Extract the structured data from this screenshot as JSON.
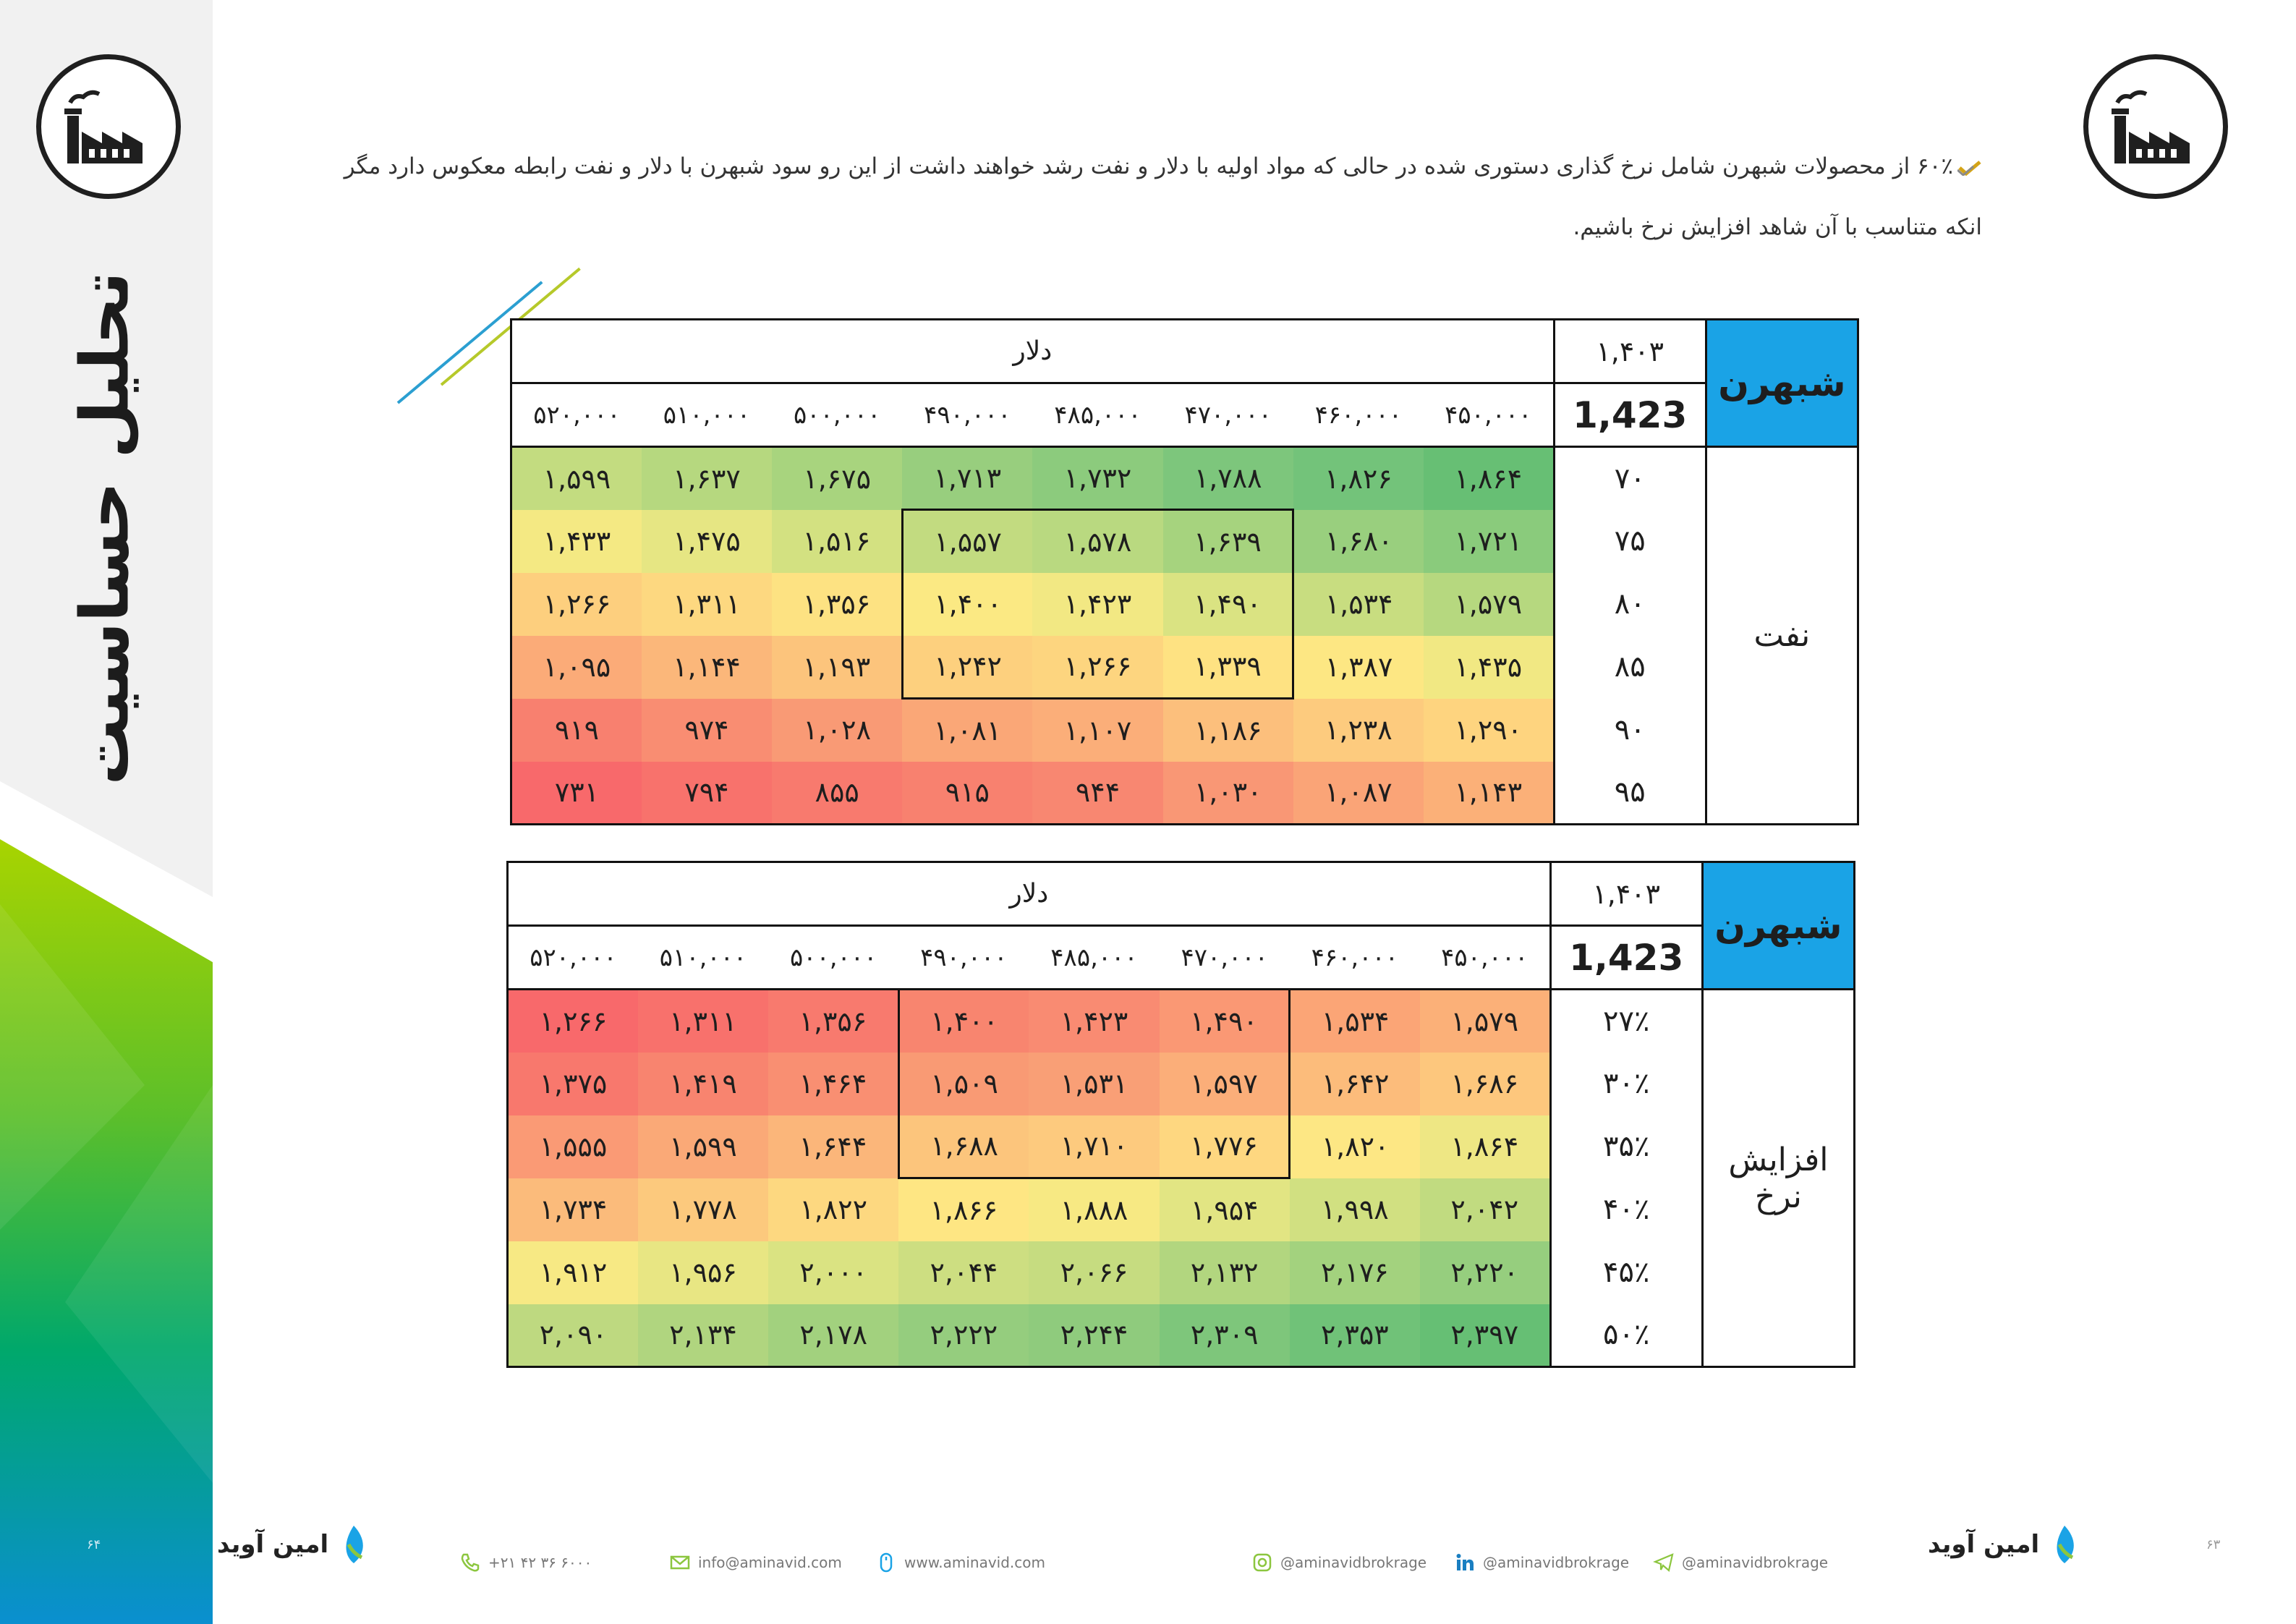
{
  "sidebar": {
    "title": "تحلیل حساسیت"
  },
  "intro": {
    "text": "۶۰٪ از محصولات شبهرن شامل نرخ گذاری دستوری شده در حالی که مواد اولیه با دلار و نفت رشد خواهند داشت از این رو سود شبهرن با دلار و نفت رابطه معکوس دارد مگر انکه متناسب با آن شاهد افزایش نرخ باشیم."
  },
  "table1": {
    "ticker": "شبهرن",
    "year": "۱,۴۰۳",
    "base": "1,423",
    "dollar_label": "دلار",
    "columns": [
      "۴۵۰,۰۰۰",
      "۴۶۰,۰۰۰",
      "۴۷۰,۰۰۰",
      "۴۸۵,۰۰۰",
      "۴۹۰,۰۰۰",
      "۵۰۰,۰۰۰",
      "۵۱۰,۰۰۰",
      "۵۲۰,۰۰۰"
    ],
    "variable": "نفت",
    "rows": [
      {
        "label": "۷۰",
        "cells": [
          "۱,۸۶۴",
          "۱,۸۲۶",
          "۱,۷۸۸",
          "۱,۷۳۲",
          "۱,۷۱۳",
          "۱,۶۷۵",
          "۱,۶۳۷",
          "۱,۵۹۹"
        ]
      },
      {
        "label": "۷۵",
        "cells": [
          "۱,۷۲۱",
          "۱,۶۸۰",
          "۱,۶۳۹",
          "۱,۵۷۸",
          "۱,۵۵۷",
          "۱,۵۱۶",
          "۱,۴۷۵",
          "۱,۴۳۳"
        ]
      },
      {
        "label": "۸۰",
        "cells": [
          "۱,۵۷۹",
          "۱,۵۳۴",
          "۱,۴۹۰",
          "۱,۴۲۳",
          "۱,۴۰۰",
          "۱,۳۵۶",
          "۱,۳۱۱",
          "۱,۲۶۶"
        ]
      },
      {
        "label": "۸۵",
        "cells": [
          "۱,۴۳۵",
          "۱,۳۸۷",
          "۱,۳۳۹",
          "۱,۲۶۶",
          "۱,۲۴۲",
          "۱,۱۹۳",
          "۱,۱۴۴",
          "۱,۰۹۵"
        ]
      },
      {
        "label": "۹۰",
        "cells": [
          "۱,۲۹۰",
          "۱,۲۳۸",
          "۱,۱۸۶",
          "۱,۱۰۷",
          "۱,۰۸۱",
          "۱,۰۲۸",
          "۹۷۴",
          "۹۱۹"
        ]
      },
      {
        "label": "۹۵",
        "cells": [
          "۱,۱۴۳",
          "۱,۰۸۷",
          "۱,۰۳۰",
          "۹۴۴",
          "۹۱۵",
          "۸۵۵",
          "۷۹۴",
          "۷۳۱"
        ]
      }
    ],
    "colors": [
      [
        "#67bf74",
        "#73c37a",
        "#7dc67c",
        "#8ccb7d",
        "#98ce7e",
        "#a8d47e",
        "#b6d87f",
        "#c3dc80"
      ],
      [
        "#8acb7c",
        "#99cf7e",
        "#a6d37e",
        "#b9d980",
        "#c2db80",
        "#d3e181",
        "#e6e683",
        "#f4e983"
      ],
      [
        "#b6d87f",
        "#c8dd80",
        "#dae382",
        "#f2e883",
        "#fbe983",
        "#fde282",
        "#fdd880",
        "#fdcf7e"
      ],
      [
        "#f1e883",
        "#fde783",
        "#fee282",
        "#fdd57f",
        "#fdd07e",
        "#fcc47c",
        "#fbb77a",
        "#fbab78"
      ],
      [
        "#fed47f",
        "#fdcb7e",
        "#fcbf7c",
        "#fbae79",
        "#faa777",
        "#f99a75",
        "#f98d72",
        "#f8806f"
      ],
      [
        "#fbb078",
        "#faa477",
        "#f99775",
        "#f88771",
        "#f8816f",
        "#f87a6e",
        "#f8726c",
        "#f8696b"
      ]
    ],
    "box": {
      "rows": [
        1,
        3
      ],
      "cols": [
        2,
        4
      ]
    }
  },
  "table2": {
    "ticker": "شبهرن",
    "year": "۱,۴۰۳",
    "base": "1,423",
    "dollar_label": "دلار",
    "columns": [
      "۴۵۰,۰۰۰",
      "۴۶۰,۰۰۰",
      "۴۷۰,۰۰۰",
      "۴۸۵,۰۰۰",
      "۴۹۰,۰۰۰",
      "۵۰۰,۰۰۰",
      "۵۱۰,۰۰۰",
      "۵۲۰,۰۰۰"
    ],
    "variable": "افزایش نرخ",
    "rows": [
      {
        "label": "۲۷٪",
        "cells": [
          "۱,۵۷۹",
          "۱,۵۳۴",
          "۱,۴۹۰",
          "۱,۴۲۳",
          "۱,۴۰۰",
          "۱,۳۵۶",
          "۱,۳۱۱",
          "۱,۲۶۶"
        ]
      },
      {
        "label": "۳۰٪",
        "cells": [
          "۱,۶۸۶",
          "۱,۶۴۲",
          "۱,۵۹۷",
          "۱,۵۳۱",
          "۱,۵۰۹",
          "۱,۴۶۴",
          "۱,۴۱۹",
          "۱,۳۷۵"
        ]
      },
      {
        "label": "۳۵٪",
        "cells": [
          "۱,۸۶۴",
          "۱,۸۲۰",
          "۱,۷۷۶",
          "۱,۷۱۰",
          "۱,۶۸۸",
          "۱,۶۴۴",
          "۱,۵۹۹",
          "۱,۵۵۵"
        ]
      },
      {
        "label": "۴۰٪",
        "cells": [
          "۲,۰۴۲",
          "۱,۹۹۸",
          "۱,۹۵۴",
          "۱,۸۸۸",
          "۱,۸۶۶",
          "۱,۸۲۲",
          "۱,۷۷۸",
          "۱,۷۳۴"
        ]
      },
      {
        "label": "۴۵٪",
        "cells": [
          "۲,۲۲۰",
          "۲,۱۷۶",
          "۲,۱۳۲",
          "۲,۰۶۶",
          "۲,۰۴۴",
          "۲,۰۰۰",
          "۱,۹۵۶",
          "۱,۹۱۲"
        ]
      },
      {
        "label": "۵۰٪",
        "cells": [
          "۲,۳۹۷",
          "۲,۳۵۳",
          "۲,۳۰۹",
          "۲,۲۴۴",
          "۲,۲۲۲",
          "۲,۱۷۸",
          "۲,۱۳۴",
          "۲,۰۹۰"
        ]
      }
    ],
    "colors": [
      [
        "#fbb078",
        "#fba576",
        "#fa9874",
        "#f98b72",
        "#f8856f",
        "#f87a6e",
        "#f8716c",
        "#f8696b"
      ],
      [
        "#fdc77d",
        "#fcbc7b",
        "#fbae79",
        "#f99f76",
        "#f99a74",
        "#f98f72",
        "#f8846f",
        "#f8786d"
      ],
      [
        "#eee784",
        "#fde784",
        "#fed780",
        "#fdca7e",
        "#fcc57c",
        "#fbb67a",
        "#faa977",
        "#fa9a75"
      ],
      [
        "#c1db80",
        "#d1e081",
        "#e2e583",
        "#f7e983",
        "#fee683",
        "#fdd880",
        "#fcc97d",
        "#fbbb7b"
      ],
      [
        "#96ce7e",
        "#a3d27e",
        "#b2d67f",
        "#c6dc80",
        "#cdde81",
        "#dae382",
        "#e8e683",
        "#f7e984"
      ],
      [
        "#66bf74",
        "#70c278",
        "#7ec67b",
        "#8fcb7d",
        "#95cd7e",
        "#a2d17e",
        "#b0d57f",
        "#bed980"
      ]
    ],
    "box": {
      "rows": [
        0,
        2
      ],
      "cols": [
        2,
        4
      ]
    }
  },
  "footer": {
    "brand": "امین آوید",
    "phone": "+۲۱ ۴۲ ۳۶ ۶۰۰۰",
    "email": "info@aminavid.com",
    "website": "www.aminavid.com",
    "instagram": "@aminavidbrokrage",
    "linkedin": "@aminavidbrokrage",
    "telegram": "@aminavidbrokrage",
    "page_left": "۶۴",
    "page_right": "۶۳"
  }
}
